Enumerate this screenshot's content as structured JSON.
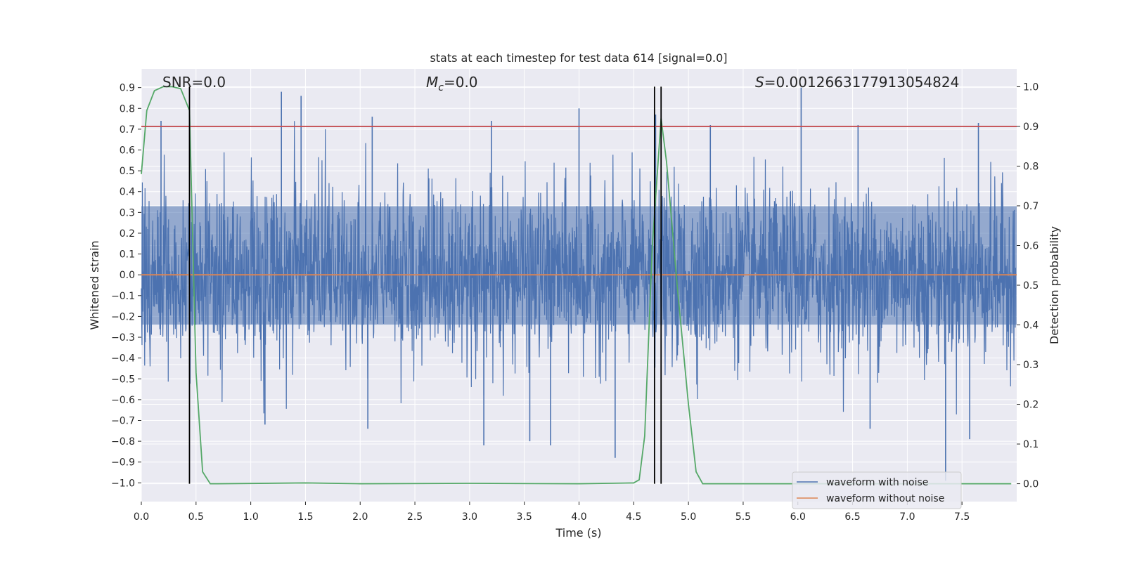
{
  "chart_data": {
    "type": "line",
    "title": "stats at each timestep for test data 614 [signal=0.0]",
    "xlabel": "Time (s)",
    "ylabel": "Whitened strain",
    "ylabel_right": "Detection probability",
    "xlim": [
      0.0,
      8.0
    ],
    "ylim": [
      -1.09,
      0.99
    ],
    "ylim_right": [
      -0.045,
      1.045
    ],
    "grid": true,
    "x_ticks": [
      0.0,
      0.5,
      1.0,
      1.5,
      2.0,
      2.5,
      3.0,
      3.5,
      4.0,
      4.5,
      5.0,
      5.5,
      6.0,
      6.5,
      7.0,
      7.5
    ],
    "x_tick_labels": [
      "0.0",
      "0.5",
      "1.0",
      "1.5",
      "2.0",
      "2.5",
      "3.0",
      "3.5",
      "4.0",
      "4.5",
      "5.0",
      "5.5",
      "6.0",
      "6.5",
      "7.0",
      "7.5"
    ],
    "y_ticks": [
      0.9,
      0.8,
      0.7,
      0.6,
      0.5,
      0.4,
      0.3,
      0.2,
      0.1,
      0.0,
      -0.1,
      -0.2,
      -0.3,
      -0.4,
      -0.5,
      -0.6,
      -0.7,
      -0.8,
      -0.9,
      -1.0
    ],
    "y_tick_labels": [
      "0.9",
      "0.8",
      "0.7",
      "0.6",
      "0.5",
      "0.4",
      "0.3",
      "0.2",
      "0.1",
      "0.0",
      "−0.1",
      "−0.2",
      "−0.3",
      "−0.4",
      "−0.5",
      "−0.6",
      "−0.7",
      "−0.8",
      "−0.9",
      "−1.0"
    ],
    "y_right_ticks": [
      1.0,
      0.9,
      0.8,
      0.7,
      0.6,
      0.5,
      0.4,
      0.3,
      0.2,
      0.1,
      0.0
    ],
    "y_right_tick_labels": [
      "1.0",
      "0.9",
      "0.8",
      "0.7",
      "0.6",
      "0.5",
      "0.4",
      "0.3",
      "0.2",
      "0.1",
      "0.0"
    ],
    "annotations": {
      "snr": "SNR=0.0",
      "mc_symbol": "M",
      "mc_sub": "c",
      "mc_value": "=0.0",
      "s_symbol": "S",
      "s_value": "=0.0012663177913054824"
    },
    "legend": {
      "position": "lower-right",
      "entries": [
        {
          "label": "waveform with noise",
          "color": "#4c72b0"
        },
        {
          "label": "waveform without noise",
          "color": "#dd8452"
        }
      ]
    },
    "series": [
      {
        "name": "waveform with noise",
        "axis": "left",
        "color": "#4c72b0",
        "kind": "noise",
        "typical_amplitude": 0.32,
        "seed": 614,
        "peaks": [
          {
            "x": 1.28,
            "y": 0.88
          },
          {
            "x": 1.46,
            "y": 0.86
          },
          {
            "x": 2.11,
            "y": 0.76
          },
          {
            "x": 4.0,
            "y": 0.8
          },
          {
            "x": 4.7,
            "y": 0.77
          },
          {
            "x": 6.03,
            "y": 0.9
          },
          {
            "x": 6.55,
            "y": 0.72
          },
          {
            "x": 7.65,
            "y": 0.73
          },
          {
            "x": 0.18,
            "y": 0.74
          },
          {
            "x": 3.2,
            "y": 0.74
          },
          {
            "x": 5.2,
            "y": 0.72
          }
        ],
        "troughs": [
          {
            "x": 7.35,
            "y": -0.99
          },
          {
            "x": 4.33,
            "y": -0.88
          },
          {
            "x": 3.13,
            "y": -0.82
          },
          {
            "x": 3.55,
            "y": -0.8
          },
          {
            "x": 3.74,
            "y": -0.82
          },
          {
            "x": 2.07,
            "y": -0.74
          },
          {
            "x": 1.13,
            "y": -0.72
          },
          {
            "x": 7.57,
            "y": -0.79
          },
          {
            "x": 6.66,
            "y": -0.74
          }
        ]
      },
      {
        "name": "waveform without noise",
        "axis": "left",
        "color": "#dd8452",
        "x": [
          0.0,
          8.0
        ],
        "y": [
          0.0,
          0.0
        ]
      },
      {
        "name": "detection probability",
        "axis": "right",
        "color": "#55a868",
        "x": [
          0.0,
          0.05,
          0.12,
          0.2,
          0.28,
          0.36,
          0.44,
          0.5,
          0.56,
          0.63,
          0.7,
          1.5,
          2.0,
          3.0,
          4.0,
          4.5,
          4.55,
          4.6,
          4.67,
          4.75,
          4.8,
          4.9,
          5.0,
          5.07,
          5.13,
          5.2,
          6.0,
          7.0,
          7.95
        ],
        "y": [
          0.78,
          0.94,
          0.99,
          1.0,
          1.0,
          0.995,
          0.94,
          0.28,
          0.03,
          0.0,
          0.0,
          0.002,
          0.0,
          0.001,
          0.0,
          0.002,
          0.01,
          0.12,
          0.6,
          0.92,
          0.81,
          0.49,
          0.2,
          0.03,
          0.0,
          0.0,
          0.0,
          0.0,
          0.0
        ]
      },
      {
        "name": "threshold",
        "axis": "right",
        "color": "#c44e52",
        "x": [
          0.0,
          8.0
        ],
        "y": [
          0.9,
          0.9
        ]
      }
    ],
    "vertical_lines": [
      0.44,
      4.69,
      4.75
    ],
    "vertical_line_range": [
      0.0,
      1.0
    ]
  }
}
